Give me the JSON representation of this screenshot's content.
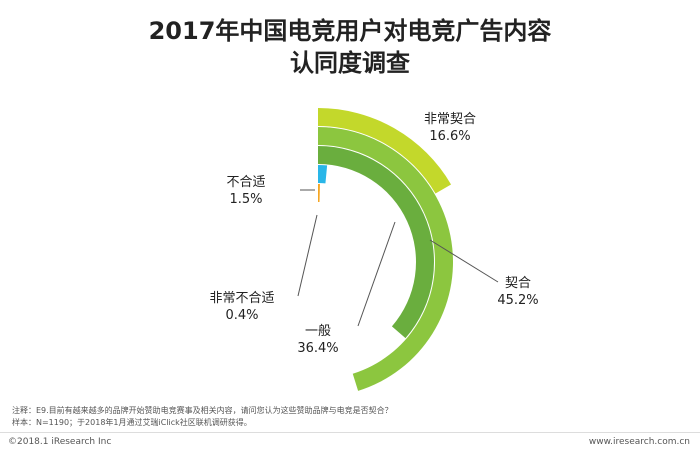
{
  "title_line1": "2017年中国电竞用户对电竞广告内容",
  "title_line2": "认同度调查",
  "chart_data": {
    "type": "radial-bar",
    "title": "2017年中国电竞用户对电竞广告内容认同度调查",
    "categories": [
      "非常契合",
      "契合",
      "一般",
      "不合适",
      "非常不合适"
    ],
    "values": [
      16.6,
      45.2,
      36.4,
      1.5,
      0.4
    ],
    "value_labels": [
      "16.6%",
      "45.2%",
      "36.4%",
      "1.5%",
      "0.4%"
    ],
    "colors": [
      "#c3d82b",
      "#8cc63f",
      "#6aae3e",
      "#29b6e8",
      "#f5a623"
    ]
  },
  "footer": {
    "note": "注释：E9.目前有越来越多的品牌开始赞助电竞赛事及相关内容，请问您认为这些赞助品牌与电竞是否契合？",
    "sample": "样本：N=1190；于2018年1月通过艾瑞iClick社区联机调研获得。",
    "copyright": "©2018.1 iResearch Inc",
    "website": "www.iresearch.com.cn"
  }
}
